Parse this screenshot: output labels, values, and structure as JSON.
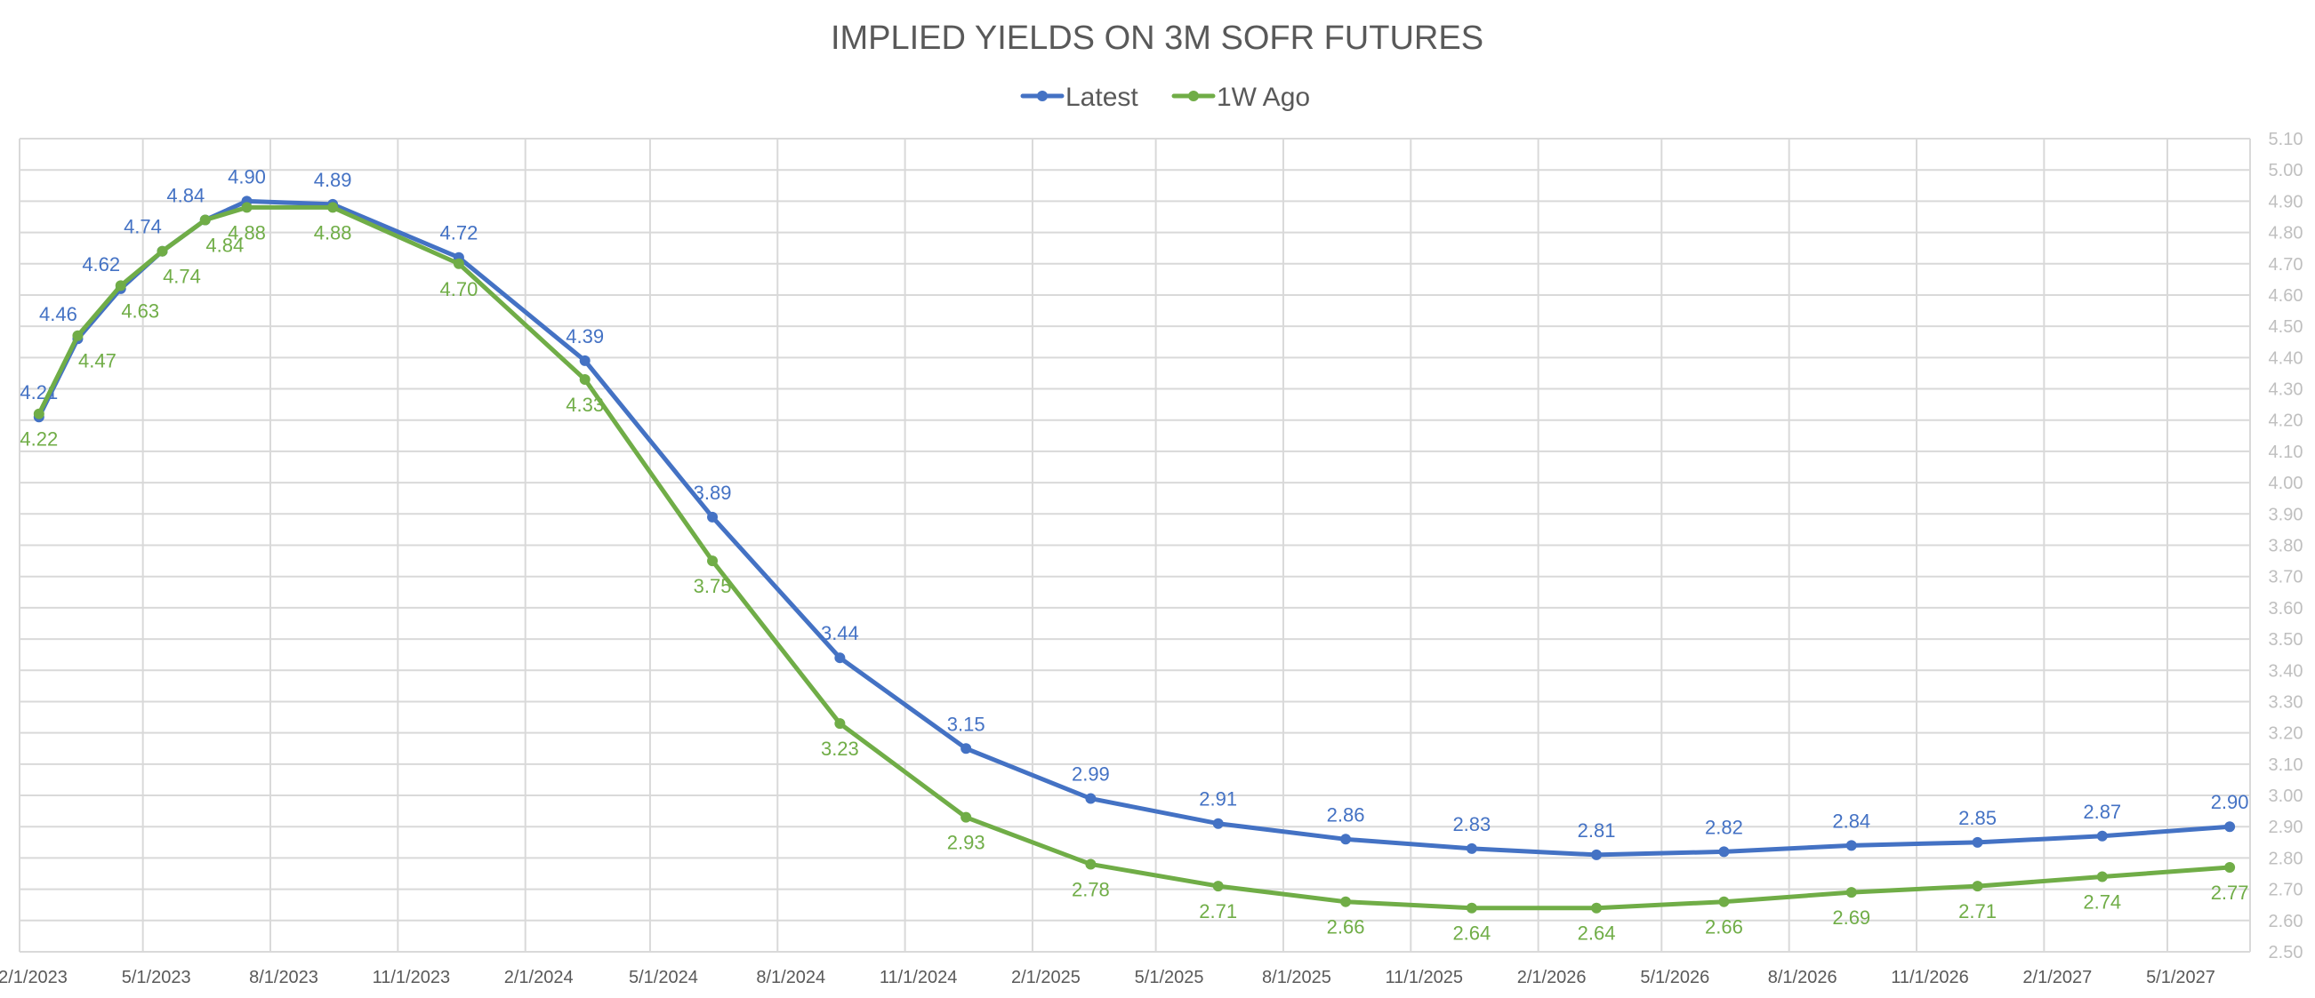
{
  "chart_data": {
    "type": "line",
    "title": "IMPLIED YIELDS ON 3M SOFR FUTURES",
    "xlabel": "",
    "ylabel": "",
    "x": [
      "2023-02-15",
      "2023-03-15",
      "2023-04-15",
      "2023-05-15",
      "2023-06-15",
      "2023-07-15",
      "2023-09-15",
      "2023-12-15",
      "2024-03-15",
      "2024-06-15",
      "2024-09-15",
      "2024-12-15",
      "2025-03-15",
      "2025-06-15",
      "2025-09-15",
      "2025-12-15",
      "2026-03-15",
      "2026-06-15",
      "2026-09-15",
      "2026-12-15",
      "2027-03-15",
      "2027-06-15"
    ],
    "series": [
      {
        "name": "Latest",
        "color": "#4472C4",
        "values": [
          4.21,
          4.46,
          4.62,
          4.74,
          4.84,
          4.9,
          4.89,
          4.72,
          4.39,
          3.89,
          3.44,
          3.15,
          2.99,
          2.91,
          2.86,
          2.83,
          2.81,
          2.82,
          2.84,
          2.85,
          2.87,
          2.9
        ],
        "labels": [
          "4.21",
          "4.46",
          "4.62",
          "4.74",
          "4.84",
          "4.90",
          "4.89",
          "4.72",
          "4.39",
          "3.89",
          "3.44",
          "3.15",
          "2.99",
          "2.91",
          "2.86",
          "2.83",
          "2.81",
          "2.82",
          "2.84",
          "2.85",
          "2.87",
          "2.90"
        ]
      },
      {
        "name": "1W Ago",
        "color": "#70AD47",
        "values": [
          4.22,
          4.47,
          4.63,
          4.74,
          4.84,
          4.88,
          4.88,
          4.7,
          4.33,
          3.75,
          3.23,
          2.93,
          2.78,
          2.71,
          2.66,
          2.64,
          2.64,
          2.66,
          2.69,
          2.71,
          2.74,
          2.77
        ],
        "labels": [
          "4.22",
          "4.47",
          "4.63",
          "4.74",
          "4.84",
          "4.88",
          "4.88",
          "4.70",
          "4.33",
          "3.75",
          "3.23",
          "2.93",
          "2.78",
          "2.71",
          "2.66",
          "2.64",
          "2.64",
          "2.66",
          "2.69",
          "2.71",
          "2.74",
          "2.77"
        ]
      }
    ],
    "xlim": [
      "2023-02-01",
      "2027-07-01"
    ],
    "x_ticks": [
      "2/1/2023",
      "5/1/2023",
      "8/1/2023",
      "11/1/2023",
      "2/1/2024",
      "5/1/2024",
      "8/1/2024",
      "11/1/2024",
      "2/1/2025",
      "5/1/2025",
      "8/1/2025",
      "11/1/2025",
      "2/1/2026",
      "5/1/2026",
      "8/1/2026",
      "11/1/2026",
      "2/1/2027",
      "5/1/2027"
    ],
    "ylim": [
      2.5,
      5.1
    ],
    "y_ticks": [
      "2.50",
      "2.60",
      "2.70",
      "2.80",
      "2.90",
      "3.00",
      "3.10",
      "3.20",
      "3.30",
      "3.40",
      "3.50",
      "3.60",
      "3.70",
      "3.80",
      "3.90",
      "4.00",
      "4.10",
      "4.20",
      "4.30",
      "4.40",
      "4.50",
      "4.60",
      "4.70",
      "4.80",
      "4.90",
      "5.00",
      "5.10"
    ],
    "y_axis_side": "right",
    "grid": true,
    "legend_position": "top",
    "gridline_color": "#D9D9D9"
  }
}
